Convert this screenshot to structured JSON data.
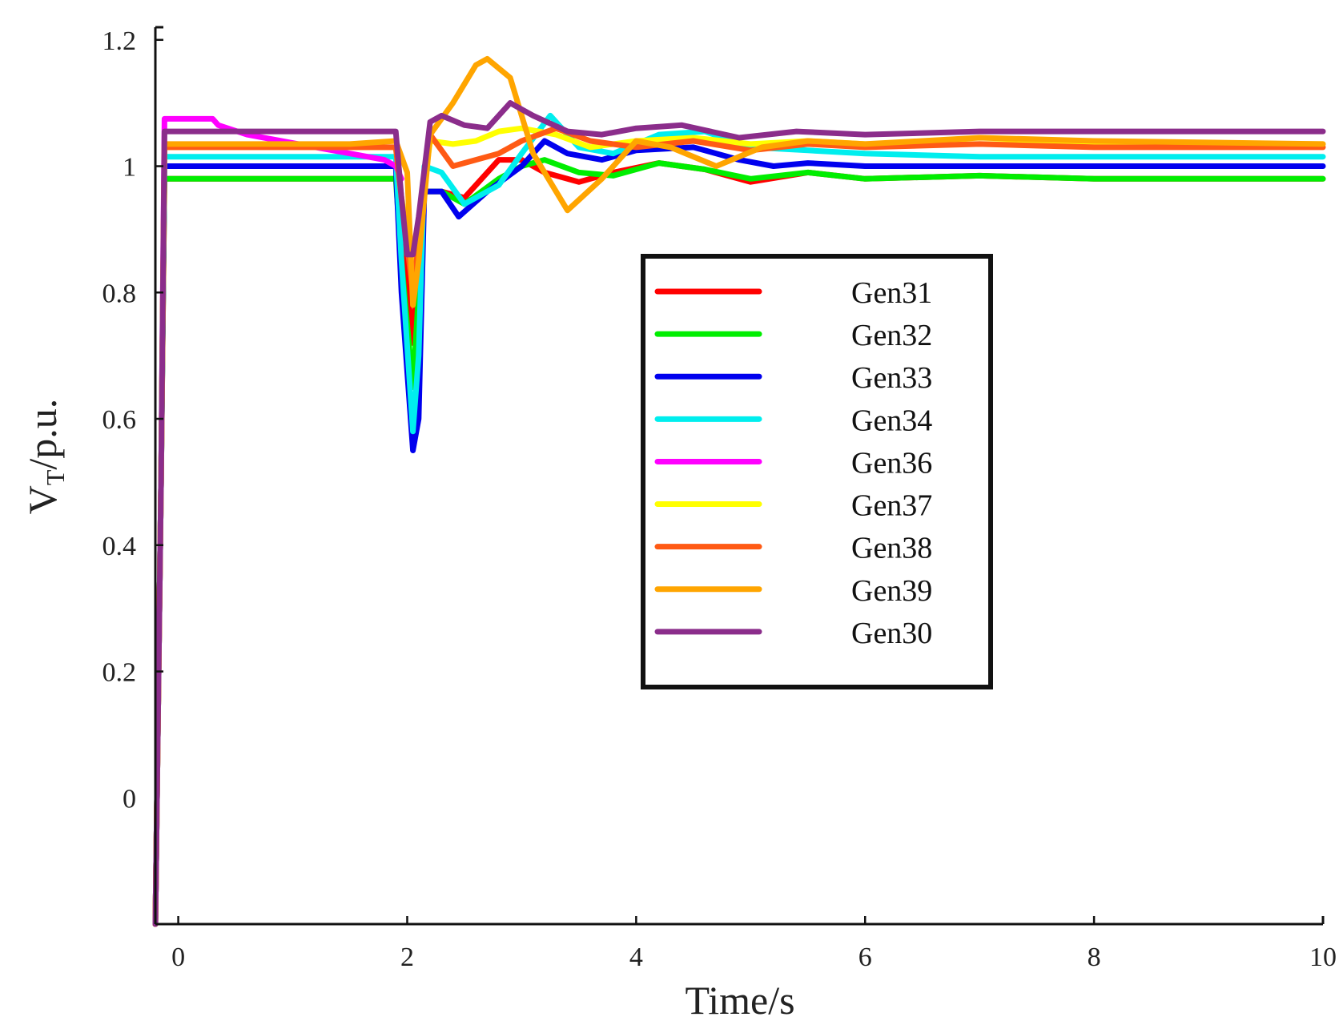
{
  "chart_data": {
    "type": "line",
    "title": "",
    "xlabel": "Time/s",
    "ylabel_main": "V",
    "ylabel_sub": "T",
    "ylabel_rest": "/p.u.",
    "xlim": [
      -0.2,
      10
    ],
    "ylim": [
      -0.2,
      1.22
    ],
    "x_ticks": [
      0,
      2,
      4,
      6,
      8,
      10
    ],
    "y_ticks": [
      0.2,
      0.4,
      0.6,
      0.8,
      1,
      1.2
    ],
    "x_tick_labels": [
      "0",
      "2",
      "4",
      "6",
      "8",
      "10"
    ],
    "y_tick_labels": [
      "0",
      "0.2",
      "0.4",
      "0.6",
      "0.8",
      "1",
      "1.2"
    ],
    "y_tick_label_values": [
      0,
      0.2,
      0.4,
      0.6,
      0.8,
      1,
      1.2
    ],
    "legend_position": "center-right",
    "series": [
      {
        "name": "Gen31",
        "color": "#ff0000",
        "x": [
          -0.2,
          -0.15,
          -0.12,
          1.9,
          1.95,
          2.05,
          2.1,
          2.15,
          2.3,
          2.5,
          2.8,
          3.0,
          3.2,
          3.5,
          3.8,
          4.2,
          4.6,
          5.0,
          5.5,
          6.0,
          7.0,
          8.0,
          10.0
        ],
        "y": [
          -0.2,
          0.5,
          0.98,
          0.98,
          0.9,
          0.72,
          0.85,
          0.96,
          0.96,
          0.95,
          1.01,
          1.01,
          0.99,
          0.975,
          0.99,
          1.005,
          0.995,
          0.975,
          0.99,
          0.98,
          0.985,
          0.98,
          0.98
        ]
      },
      {
        "name": "Gen32",
        "color": "#00ee00",
        "x": [
          -0.2,
          -0.15,
          -0.12,
          1.9,
          1.95,
          2.05,
          2.1,
          2.15,
          2.3,
          2.5,
          2.8,
          3.0,
          3.2,
          3.5,
          3.8,
          4.2,
          4.6,
          5.0,
          5.5,
          6.0,
          7.0,
          8.0,
          10.0
        ],
        "y": [
          -0.2,
          0.5,
          0.98,
          0.98,
          0.85,
          0.65,
          0.8,
          0.96,
          0.96,
          0.94,
          0.98,
          1.0,
          1.01,
          0.99,
          0.985,
          1.005,
          0.995,
          0.98,
          0.99,
          0.98,
          0.985,
          0.98,
          0.98
        ]
      },
      {
        "name": "Gen33",
        "color": "#0000ee",
        "x": [
          -0.2,
          -0.15,
          -0.12,
          1.9,
          1.95,
          2.05,
          2.1,
          2.15,
          2.3,
          2.45,
          2.7,
          3.0,
          3.2,
          3.4,
          3.7,
          4.0,
          4.5,
          4.9,
          5.2,
          5.5,
          6.0,
          7.0,
          8.0,
          10.0
        ],
        "y": [
          -0.2,
          0.5,
          1.0,
          1.0,
          0.8,
          0.55,
          0.6,
          0.96,
          0.96,
          0.92,
          0.96,
          1.0,
          1.04,
          1.02,
          1.01,
          1.025,
          1.03,
          1.01,
          1.0,
          1.005,
          1.0,
          1.0,
          1.0,
          1.0
        ]
      },
      {
        "name": "Gen34",
        "color": "#00eeee",
        "x": [
          -0.2,
          -0.15,
          -0.12,
          1.9,
          1.95,
          2.05,
          2.1,
          2.15,
          2.3,
          2.5,
          2.8,
          3.0,
          3.25,
          3.5,
          3.8,
          4.2,
          4.6,
          5.0,
          5.5,
          6.0,
          7.0,
          8.0,
          10.0
        ],
        "y": [
          -0.2,
          0.5,
          1.015,
          1.015,
          0.85,
          0.58,
          0.7,
          1.0,
          0.99,
          0.94,
          0.97,
          1.02,
          1.08,
          1.03,
          1.02,
          1.05,
          1.055,
          1.03,
          1.025,
          1.02,
          1.015,
          1.015,
          1.015
        ]
      },
      {
        "name": "Gen36",
        "color": "#ff00ff",
        "x": [
          -0.2,
          -0.15,
          -0.12,
          0.3,
          0.35,
          0.6,
          0.9,
          1.2,
          1.5,
          1.8,
          1.9,
          1.95
        ],
        "y": [
          -0.2,
          0.5,
          1.075,
          1.075,
          1.065,
          1.05,
          1.04,
          1.03,
          1.02,
          1.01,
          1.0,
          0.98
        ]
      },
      {
        "name": "Gen37",
        "color": "#ffff00",
        "x": [
          -0.2,
          -0.15,
          -0.12,
          1.9,
          1.95,
          2.05,
          2.1,
          2.2,
          2.4,
          2.6,
          2.8,
          3.0,
          3.3,
          3.6,
          4.0,
          4.5,
          5.0,
          5.5,
          6.0,
          7.0,
          8.0,
          10.0
        ],
        "y": [
          -0.2,
          0.5,
          1.03,
          1.03,
          0.95,
          0.85,
          0.9,
          1.04,
          1.035,
          1.04,
          1.055,
          1.06,
          1.05,
          1.03,
          1.04,
          1.045,
          1.035,
          1.04,
          1.035,
          1.035,
          1.035,
          1.035
        ]
      },
      {
        "name": "Gen38",
        "color": "#ff5a14",
        "x": [
          -0.2,
          -0.15,
          -0.12,
          1.9,
          1.95,
          2.05,
          2.1,
          2.2,
          2.4,
          2.6,
          2.8,
          3.0,
          3.3,
          3.6,
          4.0,
          4.5,
          5.0,
          5.5,
          6.0,
          7.0,
          8.0,
          10.0
        ],
        "y": [
          -0.2,
          0.5,
          1.03,
          1.03,
          0.95,
          0.8,
          0.88,
          1.05,
          1.0,
          1.01,
          1.02,
          1.04,
          1.06,
          1.04,
          1.03,
          1.04,
          1.025,
          1.035,
          1.03,
          1.035,
          1.03,
          1.03
        ]
      },
      {
        "name": "Gen39",
        "color": "#ffa500",
        "x": [
          -0.2,
          -0.15,
          -0.12,
          1.5,
          1.9,
          2.0,
          2.05,
          2.1,
          2.2,
          2.4,
          2.6,
          2.7,
          2.9,
          3.1,
          3.4,
          3.7,
          4.0,
          4.3,
          4.7,
          5.1,
          5.5,
          6.0,
          6.5,
          7.0,
          8.0,
          10.0
        ],
        "y": [
          -0.2,
          0.5,
          1.035,
          1.035,
          1.04,
          0.99,
          0.78,
          0.85,
          1.05,
          1.1,
          1.16,
          1.17,
          1.14,
          1.02,
          0.93,
          0.98,
          1.04,
          1.03,
          1.0,
          1.03,
          1.04,
          1.035,
          1.04,
          1.045,
          1.04,
          1.035
        ]
      },
      {
        "name": "Gen30",
        "color": "#8b2d8b",
        "x": [
          -0.2,
          -0.15,
          -0.12,
          1.9,
          1.95,
          2.0,
          2.05,
          2.1,
          2.2,
          2.3,
          2.5,
          2.7,
          2.9,
          3.1,
          3.4,
          3.7,
          4.0,
          4.4,
          4.9,
          5.4,
          6.0,
          7.0,
          8.0,
          10.0
        ],
        "y": [
          -0.2,
          0.5,
          1.055,
          1.055,
          0.95,
          0.86,
          0.86,
          0.92,
          1.07,
          1.08,
          1.065,
          1.06,
          1.1,
          1.08,
          1.055,
          1.05,
          1.06,
          1.065,
          1.045,
          1.055,
          1.05,
          1.055,
          1.055,
          1.055
        ]
      }
    ]
  }
}
